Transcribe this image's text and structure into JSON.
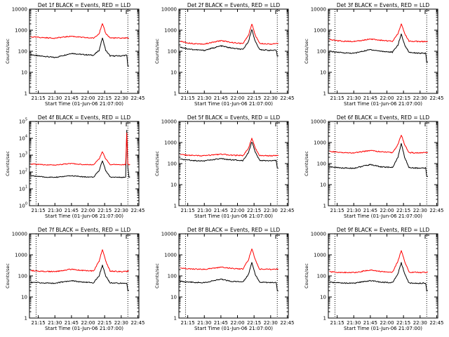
{
  "colors": {
    "events": "#000000",
    "lld": "#ff0000",
    "background": "#ffffff",
    "axes": "#000000"
  },
  "common": {
    "xlabel": "Start Time (01-Jun-06 21:07:00)",
    "ylabel": "Counts/sec",
    "xticks": [
      "21:15",
      "21:30",
      "21:45",
      "22:00",
      "22:15",
      "22:30",
      "22:45"
    ],
    "y_scale": "log"
  },
  "chart_data": [
    {
      "type": "line",
      "title": "Det 1f BLACK = Events, RED = LLD",
      "xlabel": "Start Time (01-Jun-06 21:07:00)",
      "ylabel": "Counts/sec",
      "xlim": [
        "21:07",
        "22:46"
      ],
      "ylim": [
        1,
        10000
      ],
      "y_scale": "log",
      "yticks": [
        "1",
        "10",
        "100",
        "1000",
        "10000"
      ],
      "vlines": [
        "21:13",
        "22:36"
      ],
      "x": [
        "21:08",
        "21:15",
        "21:20",
        "21:30",
        "21:45",
        "21:55",
        "22:05",
        "22:10",
        "22:13",
        "22:16",
        "22:20",
        "22:30",
        "22:35",
        "22:36",
        "22:37"
      ],
      "series": [
        {
          "name": "Events",
          "values": [
            70,
            60,
            58,
            50,
            80,
            70,
            65,
            110,
            430,
            110,
            60,
            60,
            65,
            20,
            20
          ]
        },
        {
          "name": "LLD",
          "values": [
            480,
            460,
            440,
            420,
            520,
            450,
            420,
            700,
            2000,
            700,
            430,
            420,
            430,
            420,
            420
          ]
        }
      ]
    },
    {
      "type": "line",
      "title": "Det 2f BLACK = Events, RED = LLD",
      "xlabel": "Start Time (01-Jun-06 21:07:00)",
      "ylabel": "Counts/sec",
      "xlim": [
        "21:07",
        "22:46"
      ],
      "ylim": [
        1,
        10000
      ],
      "y_scale": "log",
      "yticks": [
        "1",
        "10",
        "100",
        "1000",
        "10000"
      ],
      "vlines": [
        "21:13",
        "22:36"
      ],
      "x": [
        "21:08",
        "21:15",
        "21:20",
        "21:30",
        "21:45",
        "21:55",
        "22:05",
        "22:10",
        "22:13",
        "22:16",
        "22:20",
        "22:30",
        "22:35",
        "22:36",
        "22:37"
      ],
      "series": [
        {
          "name": "Events",
          "values": [
            160,
            130,
            120,
            110,
            180,
            140,
            120,
            300,
            1100,
            300,
            120,
            110,
            110,
            60,
            60
          ]
        },
        {
          "name": "LLD",
          "values": [
            300,
            250,
            230,
            220,
            320,
            260,
            230,
            600,
            2000,
            600,
            240,
            220,
            230,
            230,
            230
          ]
        }
      ]
    },
    {
      "type": "line",
      "title": "Det 3f BLACK = Events, RED = LLD",
      "xlabel": "Start Time (01-Jun-06 21:07:00)",
      "ylabel": "Counts/sec",
      "xlim": [
        "21:07",
        "22:46"
      ],
      "ylim": [
        1,
        10000
      ],
      "y_scale": "log",
      "yticks": [
        "1",
        "10",
        "100",
        "1000",
        "10000"
      ],
      "vlines": [
        "21:13",
        "22:36"
      ],
      "x": [
        "21:08",
        "21:15",
        "21:20",
        "21:30",
        "21:45",
        "21:55",
        "22:05",
        "22:10",
        "22:13",
        "22:16",
        "22:20",
        "22:30",
        "22:35",
        "22:36",
        "22:37"
      ],
      "series": [
        {
          "name": "Events",
          "values": [
            100,
            90,
            85,
            80,
            120,
            100,
            90,
            200,
            650,
            200,
            90,
            80,
            80,
            30,
            30
          ]
        },
        {
          "name": "LLD",
          "values": [
            350,
            320,
            300,
            290,
            380,
            330,
            300,
            700,
            2000,
            700,
            300,
            290,
            290,
            300,
            300
          ]
        }
      ]
    },
    {
      "type": "line",
      "title": "Det 4f BLACK = Events, RED = LLD",
      "xlabel": "Start Time (01-Jun-06 21:07:00)",
      "ylabel": "Counts/sec",
      "xlim": [
        "21:07",
        "22:46"
      ],
      "ylim": [
        1,
        100000
      ],
      "y_scale": "log",
      "yticks": [
        "10^0",
        "10^1",
        "10^2",
        "10^3",
        "10^4",
        "10^5"
      ],
      "vlines": [
        "21:13",
        "22:36"
      ],
      "x": [
        "21:08",
        "21:15",
        "21:20",
        "21:30",
        "21:45",
        "21:55",
        "22:05",
        "22:10",
        "22:13",
        "22:16",
        "22:20",
        "22:30",
        "22:34",
        "22:35",
        "22:36",
        "22:37",
        "22:38"
      ],
      "series": [
        {
          "name": "Events",
          "values": [
            60,
            55,
            50,
            48,
            60,
            52,
            50,
            120,
            480,
            120,
            50,
            48,
            50,
            30000,
            200,
            50,
            50
          ]
        },
        {
          "name": "LLD",
          "values": [
            300,
            280,
            270,
            260,
            320,
            280,
            270,
            600,
            1600,
            600,
            280,
            270,
            280,
            20000,
            300,
            280,
            280
          ]
        }
      ]
    },
    {
      "type": "line",
      "title": "Det 5f BLACK = Events, RED = LLD",
      "xlabel": "Start Time (01-Jun-06 21:07:00)",
      "ylabel": "Counts/sec",
      "xlim": [
        "21:07",
        "22:46"
      ],
      "ylim": [
        1,
        10000
      ],
      "y_scale": "log",
      "yticks": [
        "1",
        "10",
        "100",
        "1000",
        "10000"
      ],
      "vlines": [
        "21:13",
        "22:36"
      ],
      "x": [
        "21:08",
        "21:15",
        "21:20",
        "21:30",
        "21:45",
        "21:55",
        "22:05",
        "22:10",
        "22:13",
        "22:16",
        "22:20",
        "22:30",
        "22:35",
        "22:36",
        "22:37"
      ],
      "series": [
        {
          "name": "Events",
          "values": [
            160,
            150,
            140,
            135,
            170,
            150,
            140,
            350,
            1100,
            350,
            140,
            135,
            140,
            60,
            60
          ]
        },
        {
          "name": "LLD",
          "values": [
            270,
            250,
            240,
            235,
            280,
            250,
            240,
            550,
            1600,
            550,
            240,
            235,
            240,
            250,
            250
          ]
        }
      ]
    },
    {
      "type": "line",
      "title": "Det 6f BLACK = Events, RED = LLD",
      "xlabel": "Start Time (01-Jun-06 21:07:00)",
      "ylabel": "Counts/sec",
      "xlim": [
        "21:07",
        "22:46"
      ],
      "ylim": [
        1,
        10000
      ],
      "y_scale": "log",
      "yticks": [
        "1",
        "10",
        "100",
        "1000",
        "10000"
      ],
      "vlines": [
        "21:13",
        "22:36"
      ],
      "x": [
        "21:08",
        "21:15",
        "21:20",
        "21:30",
        "21:45",
        "21:55",
        "22:05",
        "22:10",
        "22:13",
        "22:16",
        "22:20",
        "22:30",
        "22:35",
        "22:36",
        "22:37"
      ],
      "series": [
        {
          "name": "Events",
          "values": [
            70,
            65,
            62,
            60,
            90,
            70,
            65,
            200,
            900,
            200,
            65,
            60,
            62,
            25,
            25
          ]
        },
        {
          "name": "LLD",
          "values": [
            380,
            350,
            330,
            320,
            420,
            360,
            330,
            800,
            2300,
            800,
            330,
            320,
            330,
            330,
            330
          ]
        }
      ]
    },
    {
      "type": "line",
      "title": "Det 7f BLACK = Events, RED = LLD",
      "xlabel": "Start Time (01-Jun-06 21:07:00)",
      "ylabel": "Counts/sec",
      "xlim": [
        "21:07",
        "22:46"
      ],
      "ylim": [
        1,
        10000
      ],
      "y_scale": "log",
      "yticks": [
        "1",
        "10",
        "100",
        "1000",
        "10000"
      ],
      "vlines": [
        "21:13",
        "22:36"
      ],
      "x": [
        "21:08",
        "21:15",
        "21:20",
        "21:30",
        "21:45",
        "21:55",
        "22:05",
        "22:10",
        "22:13",
        "22:16",
        "22:20",
        "22:30",
        "22:35",
        "22:36",
        "22:37"
      ],
      "series": [
        {
          "name": "Events",
          "values": [
            50,
            48,
            46,
            45,
            60,
            50,
            48,
            100,
            320,
            100,
            46,
            45,
            46,
            20,
            20
          ]
        },
        {
          "name": "LLD",
          "values": [
            180,
            170,
            165,
            160,
            210,
            180,
            170,
            500,
            1800,
            500,
            170,
            160,
            165,
            170,
            170
          ]
        }
      ]
    },
    {
      "type": "line",
      "title": "Det 8f BLACK = Events, RED = LLD",
      "xlabel": "Start Time (01-Jun-06 21:07:00)",
      "ylabel": "Counts/sec",
      "xlim": [
        "21:07",
        "22:46"
      ],
      "ylim": [
        1,
        10000
      ],
      "y_scale": "log",
      "yticks": [
        "1",
        "10",
        "100",
        "1000",
        "10000"
      ],
      "vlines": [
        "21:13",
        "22:36"
      ],
      "x": [
        "21:08",
        "21:15",
        "21:20",
        "21:30",
        "21:45",
        "21:55",
        "22:05",
        "22:10",
        "22:13",
        "22:16",
        "22:20",
        "22:30",
        "22:35",
        "22:36",
        "22:37"
      ],
      "series": [
        {
          "name": "Events",
          "values": [
            55,
            52,
            50,
            48,
            70,
            55,
            52,
            120,
            450,
            120,
            50,
            48,
            50,
            20,
            20
          ]
        },
        {
          "name": "LLD",
          "values": [
            230,
            220,
            210,
            205,
            260,
            225,
            215,
            600,
            2000,
            600,
            210,
            205,
            210,
            210,
            210
          ]
        }
      ]
    },
    {
      "type": "line",
      "title": "Det 9f BLACK = Events, RED = LLD",
      "xlabel": "Start Time (01-Jun-06 21:07:00)",
      "ylabel": "Counts/sec",
      "xlim": [
        "21:07",
        "22:46"
      ],
      "ylim": [
        1,
        10000
      ],
      "y_scale": "log",
      "yticks": [
        "1",
        "10",
        "100",
        "1000",
        "10000"
      ],
      "vlines": [
        "21:13",
        "22:36"
      ],
      "x": [
        "21:08",
        "21:15",
        "21:20",
        "21:30",
        "21:45",
        "21:55",
        "22:05",
        "22:10",
        "22:13",
        "22:16",
        "22:20",
        "22:30",
        "22:35",
        "22:36",
        "22:37"
      ],
      "series": [
        {
          "name": "Events",
          "values": [
            50,
            48,
            46,
            45,
            60,
            50,
            48,
            130,
            420,
            130,
            46,
            45,
            46,
            20,
            20
          ]
        },
        {
          "name": "LLD",
          "values": [
            160,
            150,
            148,
            145,
            190,
            160,
            150,
            500,
            1600,
            500,
            150,
            145,
            150,
            150,
            150
          ]
        }
      ]
    }
  ]
}
